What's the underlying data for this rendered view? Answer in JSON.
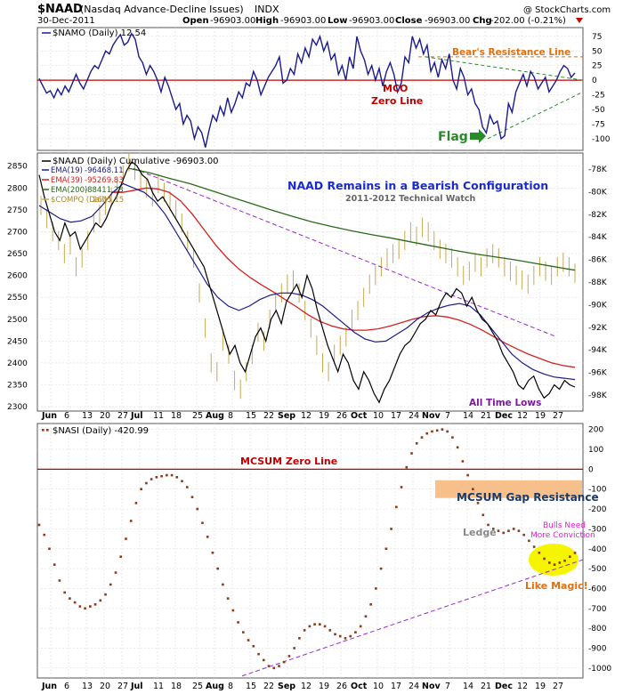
{
  "header": {
    "symbol": "$NAAD",
    "name": "(Nasdaq Advance-Decline Issues)",
    "exchange": "INDX",
    "credit": "@ StockCharts.com",
    "date": "30-Dec-2011",
    "open_label": "Open",
    "open": "-96903.00",
    "high_label": "High",
    "high": "-96903.00",
    "low_label": "Low",
    "low": "-96903.00",
    "close_label": "Close",
    "close": "-96903.00",
    "chg_label": "Chg",
    "chg": "-202.00 (-0.21%)"
  },
  "colors": {
    "namo": "#1a1a8c",
    "naad": "#000000",
    "ema19": "#1a1a8c",
    "ema39": "#d42020",
    "ema200": "#2a6a1a",
    "compq": "#c8a850",
    "nasi": "#8b3a1a",
    "zero": "#c00000",
    "trend_green": "#2a8a2a",
    "trend_purple": "#9a2ac8",
    "orange": "#e07010",
    "resistance_box": "#f7c08a",
    "magic": "#f5f500"
  },
  "x_axis": {
    "labels": [
      "Jun",
      "6",
      "13",
      "20",
      "27",
      "Jul",
      "11",
      "18",
      "25",
      "Aug",
      "8",
      "15",
      "22",
      "Sep",
      "12",
      "19",
      "26",
      "Oct",
      "10",
      "17",
      "24",
      "Nov",
      "7",
      "14",
      "21",
      "Dec",
      "12",
      "19",
      "27"
    ],
    "months": [
      "Jun",
      "Jul",
      "Aug",
      "Sep",
      "Oct",
      "Nov",
      "Dec"
    ]
  },
  "chart_data": [
    {
      "type": "line",
      "title": "$NAMO (Daily) 12.54",
      "ylim": [
        -120,
        90
      ],
      "yticks": [
        "75",
        "50",
        "25",
        "0",
        "-25",
        "-50",
        "-75",
        "-100"
      ],
      "annotations": {
        "bears_resistance": "Bear's Resistance Line",
        "mco": "MCO",
        "zero_line": "Zero Line",
        "flag": "Flag"
      },
      "series": [
        {
          "name": "$NAMO (Daily) 12.54",
          "values": [
            3,
            -10,
            -22,
            -18,
            -30,
            -15,
            -25,
            -10,
            -20,
            -5,
            10,
            -5,
            -15,
            0,
            15,
            25,
            20,
            35,
            50,
            45,
            60,
            70,
            78,
            60,
            65,
            80,
            70,
            40,
            30,
            10,
            25,
            15,
            0,
            -20,
            5,
            -10,
            -30,
            -50,
            -40,
            -75,
            -60,
            -70,
            -100,
            -80,
            -90,
            -115,
            -85,
            -60,
            -70,
            -45,
            -60,
            -30,
            -55,
            -40,
            -20,
            -30,
            -5,
            -10,
            15,
            0,
            -25,
            -10,
            5,
            15,
            25,
            40,
            -5,
            0,
            20,
            10,
            45,
            30,
            55,
            40,
            70,
            60,
            75,
            50,
            65,
            35,
            45,
            10,
            25,
            0,
            40,
            20,
            75,
            50,
            35,
            10,
            25,
            0,
            20,
            -10,
            15,
            30,
            10,
            -20,
            -5,
            40,
            30,
            75,
            55,
            70,
            45,
            60,
            15,
            30,
            5,
            35,
            20,
            45,
            0,
            -15,
            20,
            5,
            -25,
            -15,
            -40,
            -50,
            -80,
            -90,
            -60,
            -75,
            -70,
            -100,
            -95,
            -40,
            -55,
            -20,
            -5,
            10,
            -10,
            15,
            5,
            -15,
            -5,
            5,
            -20,
            -10,
            0,
            15,
            25,
            20,
            5,
            12.54
          ]
        }
      ]
    },
    {
      "type": "line",
      "title": "$NAAD (Daily) Cumulative -96903.00",
      "ylim": [
        2290,
        2880
      ],
      "yticks": [
        "2850",
        "2800",
        "2750",
        "2700",
        "2650",
        "2600",
        "2550",
        "2500",
        "2450",
        "2400",
        "2350",
        "2300"
      ],
      "yticks_right": [
        "-78K",
        "-80K",
        "-82K",
        "-84K",
        "-86K",
        "-88K",
        "-90K",
        "-92K",
        "-94K",
        "-96K",
        "-98K"
      ],
      "annotations": {
        "headline": "NAAD Remains in a Bearish Configuration",
        "subhead": "2011-2012 Technical Watch",
        "all_time_lows": "All Time Lows"
      },
      "legend": [
        {
          "name": "EMA(19)",
          "value": "-96468.11"
        },
        {
          "name": "EMA(39)",
          "value": "-95269.83"
        },
        {
          "name": "EMA(200)",
          "value": "-88411.23"
        },
        {
          "name": "$COMPQ (Daily)",
          "value": "2605.15"
        }
      ],
      "series": [
        {
          "name": "$NAAD (Daily) Cumulative -96903.00",
          "values": [
            2830,
            2780,
            2740,
            2700,
            2680,
            2720,
            2690,
            2700,
            2660,
            2680,
            2700,
            2720,
            2710,
            2730,
            2760,
            2780,
            2810,
            2840,
            2860,
            2850,
            2830,
            2820,
            2790,
            2770,
            2780,
            2760,
            2740,
            2720,
            2700,
            2680,
            2660,
            2640,
            2620,
            2580,
            2540,
            2500,
            2460,
            2420,
            2440,
            2400,
            2380,
            2420,
            2460,
            2480,
            2450,
            2500,
            2520,
            2490,
            2540,
            2560,
            2580,
            2550,
            2600,
            2570,
            2520,
            2480,
            2440,
            2410,
            2380,
            2420,
            2400,
            2360,
            2340,
            2380,
            2360,
            2330,
            2310,
            2340,
            2360,
            2390,
            2420,
            2440,
            2450,
            2470,
            2490,
            2500,
            2520,
            2510,
            2540,
            2560,
            2550,
            2570,
            2560,
            2530,
            2550,
            2520,
            2500,
            2490,
            2470,
            2450,
            2420,
            2400,
            2380,
            2350,
            2340,
            2360,
            2370,
            2340,
            2320,
            2330,
            2350,
            2340,
            2360,
            2350,
            2345
          ]
        },
        {
          "name": "EMA(19)",
          "values": [
            2760,
            2745,
            2730,
            2722,
            2725,
            2735,
            2760,
            2790,
            2810,
            2800,
            2790,
            2770,
            2740,
            2700,
            2660,
            2620,
            2580,
            2550,
            2530,
            2520,
            2530,
            2545,
            2555,
            2560,
            2560,
            2555,
            2545,
            2530,
            2510,
            2490,
            2470,
            2455,
            2448,
            2450,
            2465,
            2480,
            2500,
            2515,
            2525,
            2532,
            2536,
            2530,
            2510,
            2480,
            2450,
            2420,
            2400,
            2385,
            2375,
            2368,
            2365,
            2362
          ]
        },
        {
          "name": "EMA(39)",
          "values": [
            2790,
            2790,
            2795,
            2800,
            2798,
            2790,
            2770,
            2740,
            2705,
            2670,
            2640,
            2615,
            2595,
            2578,
            2562,
            2545,
            2528,
            2510,
            2495,
            2485,
            2478,
            2475,
            2475,
            2478,
            2484,
            2492,
            2500,
            2506,
            2508,
            2505,
            2498,
            2488,
            2475,
            2460,
            2445,
            2432,
            2420,
            2410,
            2400,
            2394,
            2390
          ]
        },
        {
          "name": "EMA(200)",
          "values": [
            2845,
            2835,
            2822,
            2810,
            2795,
            2780,
            2765,
            2750,
            2736,
            2723,
            2712,
            2702,
            2693,
            2685,
            2676,
            2667,
            2658,
            2650,
            2643,
            2636,
            2628,
            2620,
            2612
          ]
        },
        {
          "name": "$COMPQ (Daily)",
          "values": [
            2760,
            2730,
            2700,
            2680,
            2650,
            2670,
            2620,
            2640,
            2680,
            2720,
            2740,
            2760,
            2780,
            2800,
            2830,
            2860,
            2840,
            2820,
            2800,
            2780,
            2810,
            2790,
            2770,
            2750,
            2720,
            2680,
            2640,
            2560,
            2480,
            2400,
            2380,
            2450,
            2420,
            2360,
            2340,
            2380,
            2420,
            2470,
            2450,
            2500,
            2540,
            2560,
            2580,
            2590,
            2560,
            2520,
            2480,
            2440,
            2400,
            2380,
            2420,
            2440,
            2460,
            2500,
            2520,
            2550,
            2580,
            2600,
            2620,
            2640,
            2650,
            2660,
            2680,
            2700,
            2690,
            2710,
            2700,
            2680,
            2660,
            2650,
            2640,
            2620,
            2600,
            2610,
            2630,
            2620,
            2640,
            2650,
            2640,
            2620,
            2610,
            2600,
            2590,
            2580,
            2600,
            2620,
            2610,
            2600,
            2620,
            2630,
            2620,
            2605
          ]
        }
      ]
    },
    {
      "type": "scatter",
      "title": "$NASI (Daily) -420.99",
      "ylim": [
        -1050,
        230
      ],
      "yticks": [
        "200",
        "100",
        "0",
        "-100",
        "-200",
        "-300",
        "-400",
        "-500",
        "-600",
        "-700",
        "-800",
        "-900",
        "-1000"
      ],
      "annotations": {
        "zero_line": "MCSUM Zero Line",
        "gap_resistance": "MCSUM Gap Resistance",
        "ledge": "Ledge",
        "bulls_need_line1": "Bulls Need",
        "bulls_need_line2": "More Conviction",
        "like_magic": "Like Magic!"
      },
      "series": [
        {
          "name": "$NASI (Daily) -420.99",
          "values": [
            -280,
            -330,
            -400,
            -480,
            -560,
            -620,
            -650,
            -670,
            -690,
            -700,
            -690,
            -680,
            -660,
            -630,
            -580,
            -520,
            -440,
            -350,
            -260,
            -170,
            -100,
            -70,
            -50,
            -40,
            -35,
            -30,
            -30,
            -40,
            -60,
            -90,
            -140,
            -200,
            -270,
            -340,
            -420,
            -500,
            -580,
            -650,
            -710,
            -770,
            -820,
            -860,
            -890,
            -930,
            -960,
            -990,
            -1000,
            -990,
            -970,
            -940,
            -900,
            -850,
            -810,
            -790,
            -780,
            -780,
            -790,
            -810,
            -830,
            -840,
            -850,
            -840,
            -820,
            -790,
            -740,
            -680,
            -600,
            -500,
            -400,
            -300,
            -190,
            -90,
            10,
            80,
            130,
            160,
            180,
            190,
            195,
            200,
            190,
            160,
            110,
            40,
            -30,
            -100,
            -170,
            -230,
            -280,
            -300,
            -310,
            -320,
            -310,
            -300,
            -310,
            -330,
            -360,
            -390,
            -420,
            -450,
            -470,
            -480,
            -470,
            -460,
            -440,
            -420.99
          ]
        }
      ]
    }
  ]
}
